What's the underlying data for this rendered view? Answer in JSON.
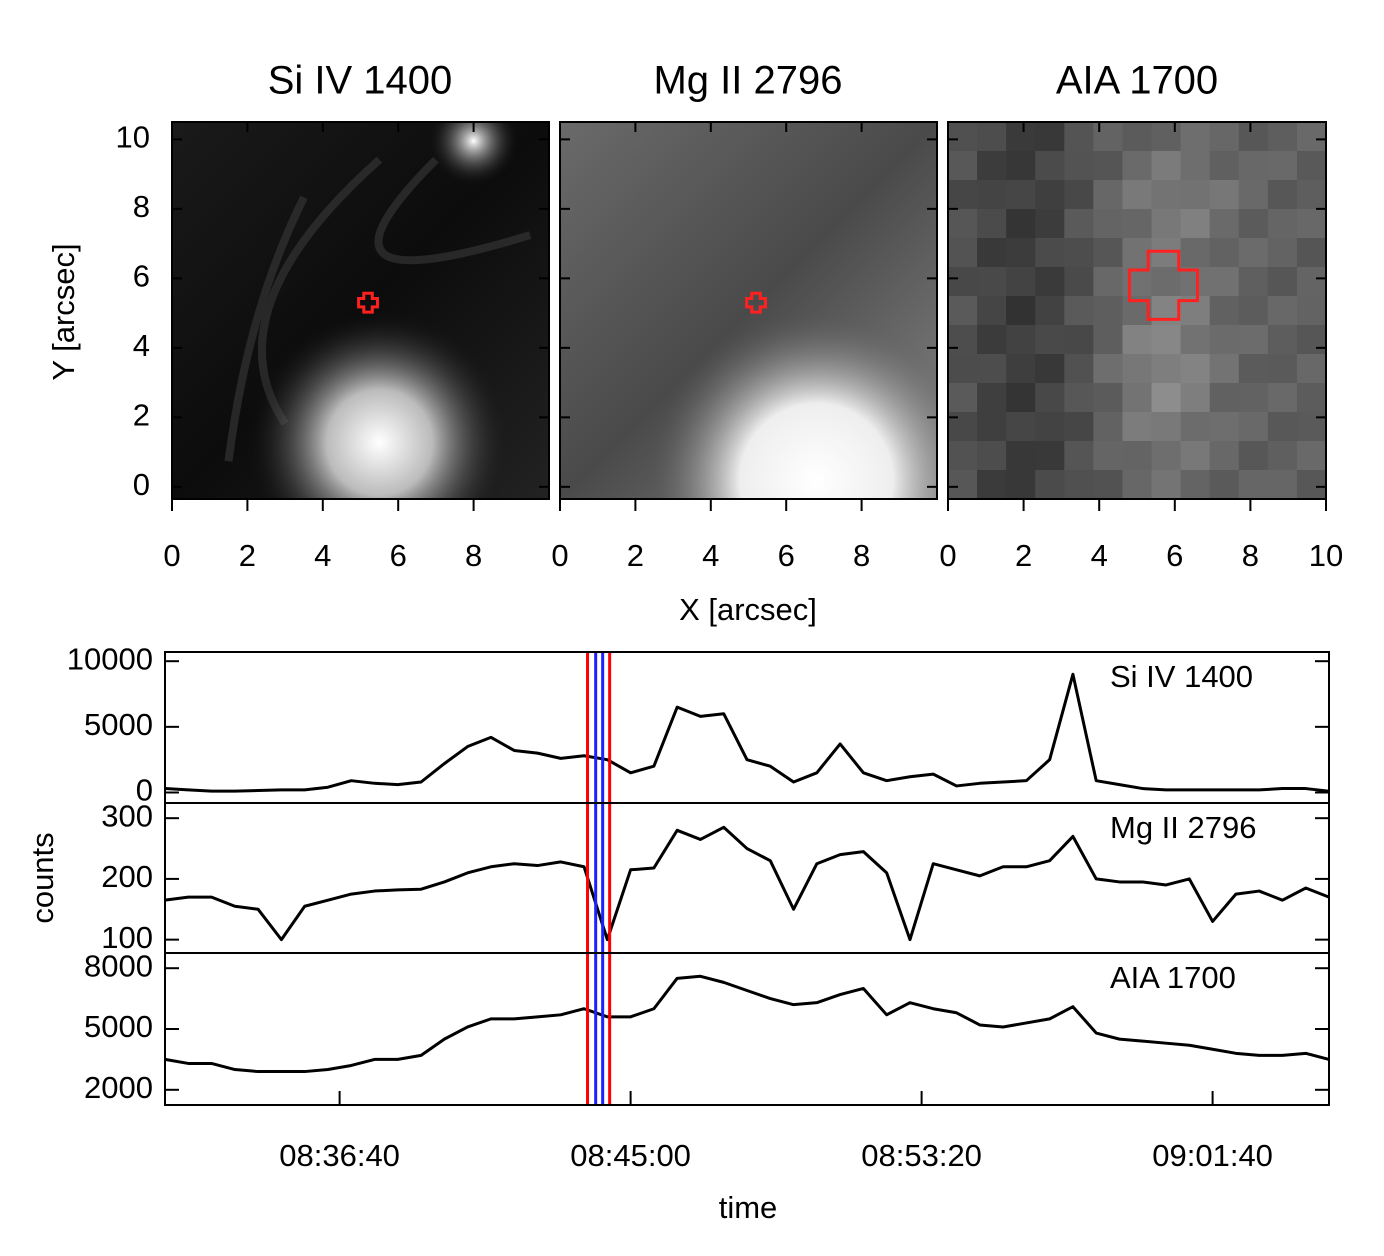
{
  "chart_data": [
    {
      "type": "image",
      "title": "Si IV 1400",
      "ylabel": "Y [arcsec]",
      "xlim": [
        0,
        10
      ],
      "ylim": [
        -0.35,
        10.5
      ],
      "xticks": [
        0,
        2,
        4,
        6,
        8
      ],
      "yticks": [
        0,
        2,
        4,
        6,
        8,
        10
      ],
      "ytick_labels": true,
      "marker": {
        "x": 5.2,
        "y": 5.3,
        "size": 0.25,
        "color": "#ff2020"
      }
    },
    {
      "type": "image",
      "title": "Mg II 2796",
      "xlabel": "X [arcsec]",
      "xlim": [
        0,
        10
      ],
      "ylim": [
        -0.35,
        10.5
      ],
      "xticks": [
        0,
        2,
        4,
        6,
        8
      ],
      "yticks": [
        0,
        2,
        4,
        6,
        8,
        10
      ],
      "ytick_labels": false,
      "marker": {
        "x": 5.2,
        "y": 5.3,
        "size": 0.25,
        "color": "#ff2020"
      }
    },
    {
      "type": "image",
      "title": "AIA 1700",
      "xlim": [
        0,
        10
      ],
      "ylim": [
        -0.35,
        10.5
      ],
      "xticks": [
        0,
        2,
        4,
        6,
        8,
        10
      ],
      "yticks": [
        0,
        2,
        4,
        6,
        8,
        10
      ],
      "ytick_labels": false,
      "marker": {
        "x": 5.7,
        "y": 5.8,
        "size": 0.9,
        "color": "#ff2020"
      }
    },
    {
      "type": "line",
      "label": "Si IV 1400",
      "color": "#000000",
      "xlim": [
        "08:31:40",
        "09:05:00"
      ],
      "ylim": [
        -800,
        10700
      ],
      "yticks": [
        0,
        5000,
        10000
      ],
      "x": [
        "08:31:40",
        "08:32:20",
        "08:33:00",
        "08:33:40",
        "08:34:20",
        "08:35:00",
        "08:35:40",
        "08:36:20",
        "08:37:00",
        "08:37:40",
        "08:38:20",
        "08:39:00",
        "08:39:40",
        "08:40:20",
        "08:41:00",
        "08:41:40",
        "08:42:20",
        "08:43:00",
        "08:43:40",
        "08:44:20",
        "08:45:00",
        "08:45:40",
        "08:46:20",
        "08:47:00",
        "08:47:40",
        "08:48:20",
        "08:49:00",
        "08:49:40",
        "08:50:20",
        "08:51:00",
        "08:51:40",
        "08:52:20",
        "08:53:00",
        "08:53:40",
        "08:54:20",
        "08:55:00",
        "08:55:40",
        "08:56:20",
        "08:57:00",
        "08:57:40",
        "08:58:20",
        "08:59:00",
        "08:59:40",
        "09:00:20",
        "09:01:00",
        "09:01:40",
        "09:02:20",
        "09:03:00",
        "09:03:40",
        "09:04:20",
        "09:05:00"
      ],
      "values": [
        300,
        200,
        100,
        100,
        150,
        200,
        200,
        400,
        900,
        700,
        600,
        800,
        2200,
        3500,
        4200,
        3200,
        3000,
        2600,
        2800,
        2500,
        1500,
        2000,
        6500,
        5800,
        6000,
        2500,
        2000,
        800,
        1500,
        3700,
        1500,
        900,
        1200,
        1400,
        500,
        700,
        800,
        900,
        2500,
        9000,
        900,
        600,
        300,
        200,
        200,
        200,
        200,
        200,
        300,
        300,
        100
      ],
      "vlines": [
        {
          "x": "08:43:46",
          "color": "#ff0000"
        },
        {
          "x": "08:44:00",
          "color": "#2020ff"
        },
        {
          "x": "08:44:12",
          "color": "#2020ff"
        },
        {
          "x": "08:44:24",
          "color": "#ff0000"
        }
      ]
    },
    {
      "type": "line",
      "label": "Mg II 2796",
      "ylabel": "counts",
      "color": "#000000",
      "xlim": [
        "08:31:40",
        "09:05:00"
      ],
      "ylim": [
        78,
        325
      ],
      "yticks": [
        100,
        200,
        300
      ],
      "x": [
        "08:31:40",
        "08:32:20",
        "08:33:00",
        "08:33:40",
        "08:34:20",
        "08:35:00",
        "08:35:40",
        "08:36:20",
        "08:37:00",
        "08:37:40",
        "08:38:20",
        "08:39:00",
        "08:39:40",
        "08:40:20",
        "08:41:00",
        "08:41:40",
        "08:42:20",
        "08:43:00",
        "08:43:40",
        "08:44:20",
        "08:45:00",
        "08:45:40",
        "08:46:20",
        "08:47:00",
        "08:47:40",
        "08:48:20",
        "08:49:00",
        "08:49:40",
        "08:50:20",
        "08:51:00",
        "08:51:40",
        "08:52:20",
        "08:53:00",
        "08:53:40",
        "08:54:20",
        "08:55:00",
        "08:55:40",
        "08:56:20",
        "08:57:00",
        "08:57:40",
        "08:58:20",
        "08:59:00",
        "08:59:40",
        "09:00:20",
        "09:01:00",
        "09:01:40",
        "09:02:20",
        "09:03:00",
        "09:03:40",
        "09:04:20",
        "09:05:00"
      ],
      "values": [
        165,
        170,
        170,
        155,
        150,
        100,
        155,
        165,
        175,
        180,
        182,
        183,
        195,
        210,
        220,
        225,
        222,
        228,
        220,
        100,
        215,
        218,
        280,
        265,
        285,
        250,
        230,
        150,
        225,
        240,
        245,
        210,
        100,
        225,
        215,
        205,
        220,
        220,
        230,
        270,
        200,
        195,
        195,
        190,
        200,
        130,
        175,
        180,
        165,
        185,
        170
      ],
      "vlines": [
        {
          "x": "08:43:46",
          "color": "#ff0000"
        },
        {
          "x": "08:44:00",
          "color": "#2020ff"
        },
        {
          "x": "08:44:12",
          "color": "#2020ff"
        },
        {
          "x": "08:44:24",
          "color": "#ff0000"
        }
      ]
    },
    {
      "type": "line",
      "label": "AIA 1700",
      "xlabel": "time",
      "color": "#000000",
      "xlim": [
        "08:31:40",
        "09:05:00"
      ],
      "ylim": [
        1250,
        8750
      ],
      "yticks": [
        2000,
        5000,
        8000
      ],
      "xticks": [
        "08:36:40",
        "08:45:00",
        "08:53:20",
        "09:01:40"
      ],
      "x": [
        "08:31:40",
        "08:32:20",
        "08:33:00",
        "08:33:40",
        "08:34:20",
        "08:35:00",
        "08:35:40",
        "08:36:20",
        "08:37:00",
        "08:37:40",
        "08:38:20",
        "08:39:00",
        "08:39:40",
        "08:40:20",
        "08:41:00",
        "08:41:40",
        "08:42:20",
        "08:43:00",
        "08:43:40",
        "08:44:20",
        "08:45:00",
        "08:45:40",
        "08:46:20",
        "08:47:00",
        "08:47:40",
        "08:48:20",
        "08:49:00",
        "08:49:40",
        "08:50:20",
        "08:51:00",
        "08:51:40",
        "08:52:20",
        "08:53:00",
        "08:53:40",
        "08:54:20",
        "08:55:00",
        "08:55:40",
        "08:56:20",
        "08:57:00",
        "08:57:40",
        "08:58:20",
        "08:59:00",
        "08:59:40",
        "09:00:20",
        "09:01:00",
        "09:01:40",
        "09:02:20",
        "09:03:00",
        "09:03:40",
        "09:04:20",
        "09:05:00"
      ],
      "values": [
        3500,
        3300,
        3300,
        3000,
        2900,
        2900,
        2900,
        3000,
        3200,
        3500,
        3500,
        3700,
        4500,
        5100,
        5500,
        5500,
        5600,
        5700,
        6000,
        5600,
        5600,
        6000,
        7500,
        7600,
        7300,
        6900,
        6500,
        6200,
        6300,
        6700,
        7000,
        5700,
        6300,
        6000,
        5800,
        5200,
        5100,
        5300,
        5500,
        6100,
        4800,
        4500,
        4400,
        4300,
        4200,
        4000,
        3800,
        3700,
        3700,
        3800,
        3500
      ],
      "vlines": [
        {
          "x": "08:43:46",
          "color": "#ff0000"
        },
        {
          "x": "08:44:00",
          "color": "#2020ff"
        },
        {
          "x": "08:44:12",
          "color": "#2020ff"
        },
        {
          "x": "08:44:24",
          "color": "#ff0000"
        }
      ]
    }
  ]
}
